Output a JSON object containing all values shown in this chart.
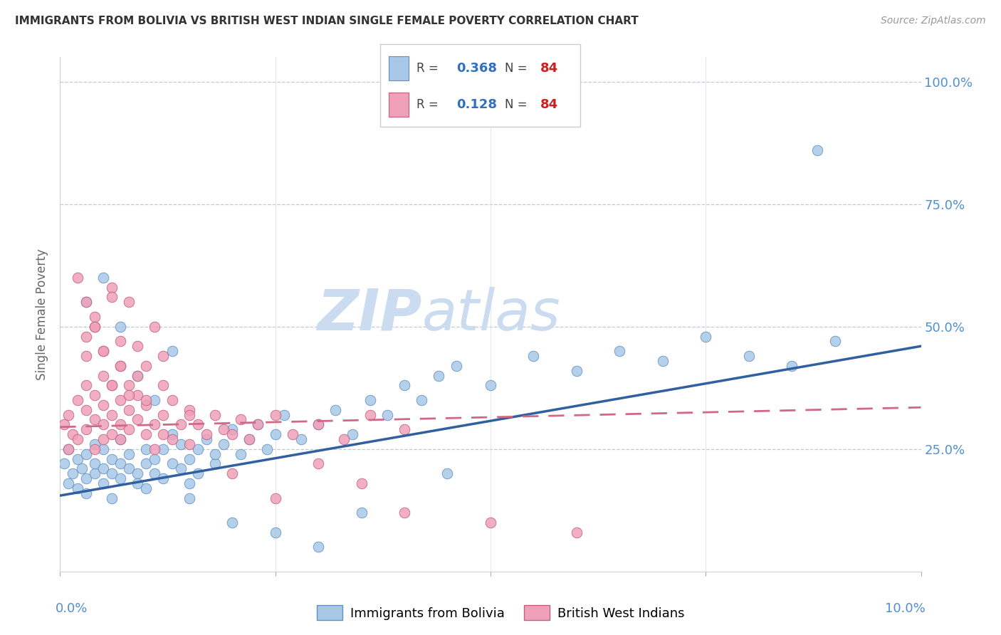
{
  "title": "IMMIGRANTS FROM BOLIVIA VS BRITISH WEST INDIAN SINGLE FEMALE POVERTY CORRELATION CHART",
  "source": "Source: ZipAtlas.com",
  "ylabel": "Single Female Poverty",
  "legend1_R": "0.368",
  "legend1_N": "84",
  "legend2_R": "0.128",
  "legend2_N": "84",
  "color_blue": "#a8c8e8",
  "color_pink": "#f0a0b8",
  "color_blue_edge": "#6090c0",
  "color_pink_edge": "#c06080",
  "color_line_blue": "#3060a0",
  "color_line_pink": "#d06888",
  "watermark_color": "#ccdcf0",
  "xlim": [
    0.0,
    0.1
  ],
  "ylim": [
    0.0,
    1.05
  ],
  "bolivia_x": [
    0.0005,
    0.001,
    0.001,
    0.0015,
    0.002,
    0.002,
    0.0025,
    0.003,
    0.003,
    0.003,
    0.004,
    0.004,
    0.004,
    0.005,
    0.005,
    0.005,
    0.006,
    0.006,
    0.006,
    0.007,
    0.007,
    0.007,
    0.008,
    0.008,
    0.009,
    0.009,
    0.01,
    0.01,
    0.01,
    0.011,
    0.011,
    0.012,
    0.012,
    0.013,
    0.013,
    0.014,
    0.014,
    0.015,
    0.015,
    0.016,
    0.016,
    0.017,
    0.018,
    0.018,
    0.019,
    0.02,
    0.021,
    0.022,
    0.023,
    0.024,
    0.025,
    0.026,
    0.028,
    0.03,
    0.032,
    0.034,
    0.036,
    0.038,
    0.04,
    0.042,
    0.044,
    0.046,
    0.05,
    0.055,
    0.06,
    0.065,
    0.07,
    0.075,
    0.08,
    0.085,
    0.09,
    0.003,
    0.005,
    0.007,
    0.009,
    0.011,
    0.013,
    0.015,
    0.02,
    0.025,
    0.03,
    0.035,
    0.045,
    0.088
  ],
  "bolivia_y": [
    0.22,
    0.18,
    0.25,
    0.2,
    0.17,
    0.23,
    0.21,
    0.19,
    0.24,
    0.16,
    0.2,
    0.22,
    0.26,
    0.21,
    0.18,
    0.25,
    0.2,
    0.23,
    0.15,
    0.22,
    0.19,
    0.27,
    0.21,
    0.24,
    0.2,
    0.18,
    0.22,
    0.25,
    0.17,
    0.23,
    0.2,
    0.25,
    0.19,
    0.22,
    0.28,
    0.21,
    0.26,
    0.23,
    0.18,
    0.25,
    0.2,
    0.27,
    0.22,
    0.24,
    0.26,
    0.29,
    0.24,
    0.27,
    0.3,
    0.25,
    0.28,
    0.32,
    0.27,
    0.3,
    0.33,
    0.28,
    0.35,
    0.32,
    0.38,
    0.35,
    0.4,
    0.42,
    0.38,
    0.44,
    0.41,
    0.45,
    0.43,
    0.48,
    0.44,
    0.42,
    0.47,
    0.55,
    0.6,
    0.5,
    0.4,
    0.35,
    0.45,
    0.15,
    0.1,
    0.08,
    0.05,
    0.12,
    0.2,
    0.86
  ],
  "bwi_x": [
    0.0005,
    0.001,
    0.001,
    0.0015,
    0.002,
    0.002,
    0.003,
    0.003,
    0.003,
    0.004,
    0.004,
    0.004,
    0.005,
    0.005,
    0.005,
    0.006,
    0.006,
    0.006,
    0.007,
    0.007,
    0.007,
    0.008,
    0.008,
    0.009,
    0.009,
    0.01,
    0.01,
    0.011,
    0.011,
    0.012,
    0.012,
    0.013,
    0.013,
    0.014,
    0.015,
    0.015,
    0.016,
    0.017,
    0.018,
    0.019,
    0.02,
    0.021,
    0.022,
    0.023,
    0.025,
    0.027,
    0.03,
    0.033,
    0.036,
    0.04,
    0.003,
    0.004,
    0.005,
    0.006,
    0.007,
    0.008,
    0.003,
    0.004,
    0.005,
    0.006,
    0.007,
    0.008,
    0.009,
    0.01,
    0.011,
    0.012,
    0.002,
    0.003,
    0.004,
    0.005,
    0.006,
    0.007,
    0.008,
    0.009,
    0.01,
    0.012,
    0.015,
    0.02,
    0.025,
    0.03,
    0.035,
    0.04,
    0.05,
    0.06
  ],
  "bwi_y": [
    0.3,
    0.32,
    0.25,
    0.28,
    0.35,
    0.27,
    0.33,
    0.29,
    0.38,
    0.31,
    0.25,
    0.36,
    0.3,
    0.34,
    0.27,
    0.32,
    0.28,
    0.38,
    0.3,
    0.35,
    0.27,
    0.33,
    0.29,
    0.36,
    0.31,
    0.28,
    0.34,
    0.3,
    0.25,
    0.32,
    0.28,
    0.35,
    0.27,
    0.3,
    0.33,
    0.26,
    0.3,
    0.28,
    0.32,
    0.29,
    0.28,
    0.31,
    0.27,
    0.3,
    0.32,
    0.28,
    0.3,
    0.27,
    0.32,
    0.29,
    0.48,
    0.52,
    0.45,
    0.58,
    0.42,
    0.55,
    0.44,
    0.5,
    0.4,
    0.56,
    0.47,
    0.38,
    0.46,
    0.42,
    0.5,
    0.44,
    0.6,
    0.55,
    0.5,
    0.45,
    0.38,
    0.42,
    0.36,
    0.4,
    0.35,
    0.38,
    0.32,
    0.2,
    0.15,
    0.22,
    0.18,
    0.12,
    0.1,
    0.08
  ]
}
